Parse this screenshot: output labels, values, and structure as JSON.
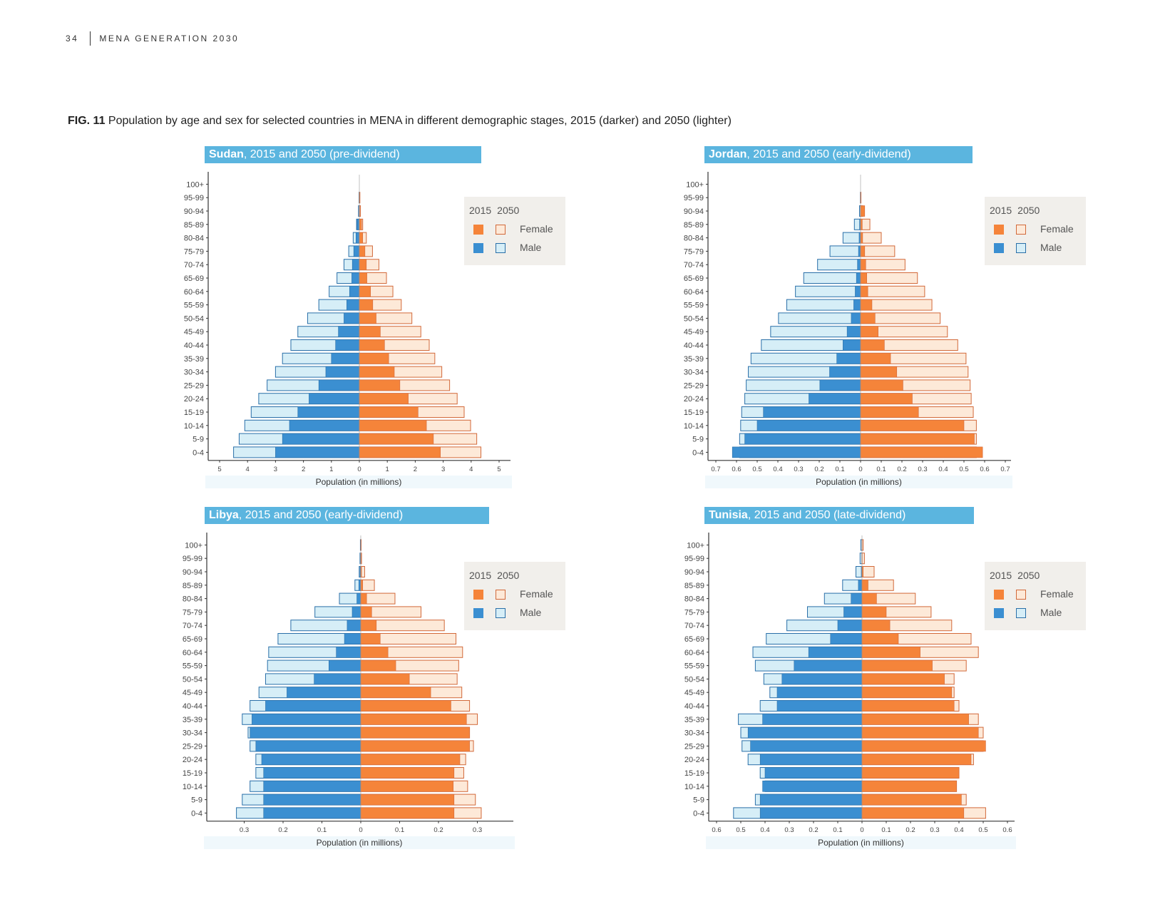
{
  "header": {
    "page_number": "34",
    "publication": "MENA GENERATION 2030"
  },
  "figure": {
    "label": "FIG. 11",
    "caption": "Population by age and sex for selected countries in MENA in different demographic stages, 2015 (darker) and 2050 (lighter)"
  },
  "legend": {
    "year_2015": "2015",
    "year_2050": "2050",
    "female": "Female",
    "male": "Male"
  },
  "colors": {
    "female_2015": "#f5843a",
    "female_2050": "#fde9d8",
    "female_border": "#d2693a",
    "male_2015": "#3b8fd1",
    "male_2050": "#d6eef7",
    "male_border": "#2a6fa8",
    "title_bg": "#5bb5df"
  },
  "chart_data": [
    {
      "type": "bar",
      "orientation": "population-pyramid",
      "country": "Sudan",
      "title_rest": ", 2015 and 2050 (pre-dividend)",
      "xlabel": "Population (in millions)",
      "xlim": [
        -5,
        5
      ],
      "xtick_values": [
        5,
        4,
        3,
        2,
        1,
        0,
        1,
        2,
        3,
        4,
        5
      ],
      "xtick_labels": [
        "5",
        "4",
        "3",
        "2",
        "1",
        "0",
        "1",
        "2",
        "3",
        "4",
        "5"
      ],
      "categories": [
        "100+",
        "95-99",
        "90-94",
        "85-89",
        "80-84",
        "75-79",
        "70-74",
        "65-69",
        "60-64",
        "55-59",
        "50-54",
        "45-49",
        "40-44",
        "35-39",
        "30-34",
        "25-29",
        "20-24",
        "15-19",
        "10-14",
        "5-9",
        "0-4"
      ],
      "series": [
        {
          "name": "Male",
          "year": "2015",
          "values": [
            0,
            0,
            0.01,
            0.08,
            0.12,
            0.2,
            0.25,
            0.27,
            0.35,
            0.45,
            0.55,
            0.75,
            0.85,
            1.0,
            1.2,
            1.45,
            1.8,
            2.2,
            2.5,
            2.75,
            3.0
          ]
        },
        {
          "name": "Male",
          "year": "2050",
          "values": [
            0,
            0.01,
            0.03,
            0.1,
            0.22,
            0.38,
            0.55,
            0.8,
            1.08,
            1.45,
            1.85,
            2.2,
            2.45,
            2.75,
            3.0,
            3.3,
            3.6,
            3.87,
            4.1,
            4.3,
            4.5
          ]
        },
        {
          "name": "Female",
          "year": "2015",
          "values": [
            0,
            0,
            0.01,
            0.08,
            0.12,
            0.2,
            0.25,
            0.27,
            0.4,
            0.48,
            0.6,
            0.75,
            0.9,
            1.05,
            1.25,
            1.45,
            1.75,
            2.1,
            2.4,
            2.65,
            2.9
          ]
        },
        {
          "name": "Female",
          "year": "2050",
          "values": [
            0,
            0.02,
            0.04,
            0.12,
            0.25,
            0.47,
            0.7,
            0.97,
            1.2,
            1.5,
            1.88,
            2.2,
            2.5,
            2.7,
            2.95,
            3.23,
            3.5,
            3.75,
            3.98,
            4.2,
            4.35
          ]
        }
      ]
    },
    {
      "type": "bar",
      "orientation": "population-pyramid",
      "country": "Jordan",
      "title_rest": ", 2015 and 2050 (early-dividend)",
      "xlabel": "Population (in millions)",
      "xlim": [
        -0.7,
        0.7
      ],
      "xtick_values": [
        0.7,
        0.6,
        0.5,
        0.4,
        0.3,
        0.2,
        0.1,
        0,
        0.1,
        0.2,
        0.3,
        0.4,
        0.5,
        0.6,
        0.7
      ],
      "xtick_labels": [
        "0.7",
        "0.6",
        "0.5",
        "0.4",
        "0.3",
        "0.2",
        "0.1",
        "0",
        "0.1",
        "0.2",
        "0.3",
        "0.4",
        "0.5",
        "0.6",
        "0.7"
      ],
      "categories": [
        "100+",
        "95-99",
        "90-94",
        "85-89",
        "80-84",
        "75-79",
        "70-74",
        "65-69",
        "60-64",
        "55-59",
        "50-54",
        "45-49",
        "40-44",
        "35-39",
        "30-34",
        "25-29",
        "20-24",
        "15-19",
        "10-14",
        "5-9",
        "0-4"
      ],
      "series": [
        {
          "name": "Male",
          "year": "2015",
          "values": [
            0,
            0,
            0.001,
            0.005,
            0.007,
            0.01,
            0.015,
            0.02,
            0.026,
            0.033,
            0.045,
            0.065,
            0.085,
            0.115,
            0.15,
            0.197,
            0.25,
            0.47,
            0.5,
            0.56,
            0.62
          ]
        },
        {
          "name": "Male",
          "year": "2050",
          "values": [
            0,
            0.001,
            0.005,
            0.03,
            0.085,
            0.148,
            0.208,
            0.275,
            0.315,
            0.357,
            0.397,
            0.435,
            0.48,
            0.53,
            0.543,
            0.553,
            0.56,
            0.575,
            0.58,
            0.585,
            0.585
          ]
        },
        {
          "name": "Female",
          "year": "2015",
          "values": [
            0,
            0,
            0.02,
            0.008,
            0.01,
            0.02,
            0.025,
            0.03,
            0.035,
            0.055,
            0.07,
            0.085,
            0.115,
            0.145,
            0.175,
            0.205,
            0.25,
            0.28,
            0.5,
            0.55,
            0.59
          ]
        },
        {
          "name": "Female",
          "year": "2050",
          "values": [
            0,
            0.002,
            0.01,
            0.045,
            0.1,
            0.165,
            0.215,
            0.275,
            0.31,
            0.345,
            0.385,
            0.42,
            0.47,
            0.51,
            0.52,
            0.53,
            0.535,
            0.545,
            0.56,
            0.56,
            0.56
          ]
        }
      ]
    },
    {
      "type": "bar",
      "orientation": "population-pyramid",
      "country": "Libya",
      "title_rest": ", 2015 and 2050 (early-dividend)",
      "xlabel": "Population (in millions)",
      "xlim": [
        -0.4,
        0.4
      ],
      "xtick_values": [
        0.3,
        0.2,
        0.1,
        0,
        0.1,
        0.2,
        0.3
      ],
      "xtick_labels": [
        "0.3",
        "0.2",
        "0.1",
        "0",
        "0.1",
        "0.2",
        "0.3"
      ],
      "categories": [
        "100+",
        "95-99",
        "90-94",
        "85-89",
        "80-84",
        "75-79",
        "70-74",
        "65-69",
        "60-64",
        "55-59",
        "50-54",
        "45-49",
        "40-44",
        "35-39",
        "30-34",
        "25-29",
        "20-24",
        "15-19",
        "10-14",
        "5-9",
        "0-4"
      ],
      "series": [
        {
          "name": "Male",
          "year": "2015",
          "values": [
            0,
            0,
            0.002,
            0.005,
            0.01,
            0.022,
            0.035,
            0.042,
            0.063,
            0.082,
            0.12,
            0.19,
            0.245,
            0.28,
            0.285,
            0.27,
            0.255,
            0.25,
            0.25,
            0.25,
            0.25
          ]
        },
        {
          "name": "Male",
          "year": "2050",
          "values": [
            0.001,
            0.002,
            0.004,
            0.015,
            0.055,
            0.118,
            0.18,
            0.213,
            0.237,
            0.24,
            0.245,
            0.262,
            0.285,
            0.305,
            0.29,
            0.285,
            0.27,
            0.27,
            0.285,
            0.305,
            0.32
          ]
        },
        {
          "name": "Female",
          "year": "2015",
          "values": [
            0,
            0,
            0.002,
            0.005,
            0.015,
            0.028,
            0.04,
            0.05,
            0.07,
            0.09,
            0.125,
            0.18,
            0.232,
            0.272,
            0.28,
            0.28,
            0.255,
            0.24,
            0.238,
            0.24,
            0.24
          ]
        },
        {
          "name": "Female",
          "year": "2050",
          "values": [
            0.001,
            0.002,
            0.01,
            0.035,
            0.088,
            0.155,
            0.215,
            0.245,
            0.262,
            0.252,
            0.248,
            0.26,
            0.28,
            0.3,
            0.28,
            0.29,
            0.27,
            0.265,
            0.275,
            0.295,
            0.31
          ]
        }
      ]
    },
    {
      "type": "bar",
      "orientation": "population-pyramid",
      "country": "Tunisia",
      "title_rest": ", 2015 and 2050 (late-dividend)",
      "xlabel": "Population (in millions)",
      "xlim": [
        -0.6,
        0.6
      ],
      "xtick_values": [
        0.6,
        0.5,
        0.4,
        0.3,
        0.2,
        0.1,
        0,
        0.1,
        0.2,
        0.3,
        0.4,
        0.5,
        0.6
      ],
      "xtick_labels": [
        "0.6",
        "0.5",
        "0.4",
        "0.3",
        "0.2",
        "0.1",
        "0",
        "0.1",
        "0.2",
        "0.3",
        "0.4",
        "0.5",
        "0.6"
      ],
      "categories": [
        "100+",
        "95-99",
        "90-94",
        "85-89",
        "80-84",
        "75-79",
        "70-74",
        "65-69",
        "60-64",
        "55-59",
        "50-54",
        "45-49",
        "40-44",
        "35-39",
        "30-34",
        "25-29",
        "20-24",
        "15-19",
        "10-14",
        "5-9",
        "0-4"
      ],
      "series": [
        {
          "name": "Male",
          "year": "2015",
          "values": [
            0,
            0.001,
            0.003,
            0.015,
            0.045,
            0.075,
            0.1,
            0.13,
            0.22,
            0.28,
            0.33,
            0.35,
            0.35,
            0.41,
            0.47,
            0.46,
            0.42,
            0.4,
            0.41,
            0.42,
            0.42
          ]
        },
        {
          "name": "Male",
          "year": "2050",
          "values": [
            0.005,
            0.008,
            0.025,
            0.08,
            0.155,
            0.225,
            0.31,
            0.395,
            0.45,
            0.44,
            0.405,
            0.38,
            0.42,
            0.51,
            0.5,
            0.495,
            0.47,
            0.42,
            0.4,
            0.44,
            0.53
          ]
        },
        {
          "name": "Female",
          "year": "2015",
          "values": [
            0,
            0.001,
            0.005,
            0.025,
            0.06,
            0.1,
            0.115,
            0.15,
            0.24,
            0.29,
            0.34,
            0.37,
            0.38,
            0.44,
            0.48,
            0.51,
            0.45,
            0.4,
            0.39,
            0.41,
            0.42
          ]
        },
        {
          "name": "Female",
          "year": "2050",
          "values": [
            0.005,
            0.01,
            0.05,
            0.13,
            0.22,
            0.285,
            0.37,
            0.45,
            0.48,
            0.43,
            0.38,
            0.38,
            0.4,
            0.48,
            0.5,
            0.5,
            0.46,
            0.4,
            0.39,
            0.43,
            0.51
          ]
        }
      ]
    }
  ]
}
